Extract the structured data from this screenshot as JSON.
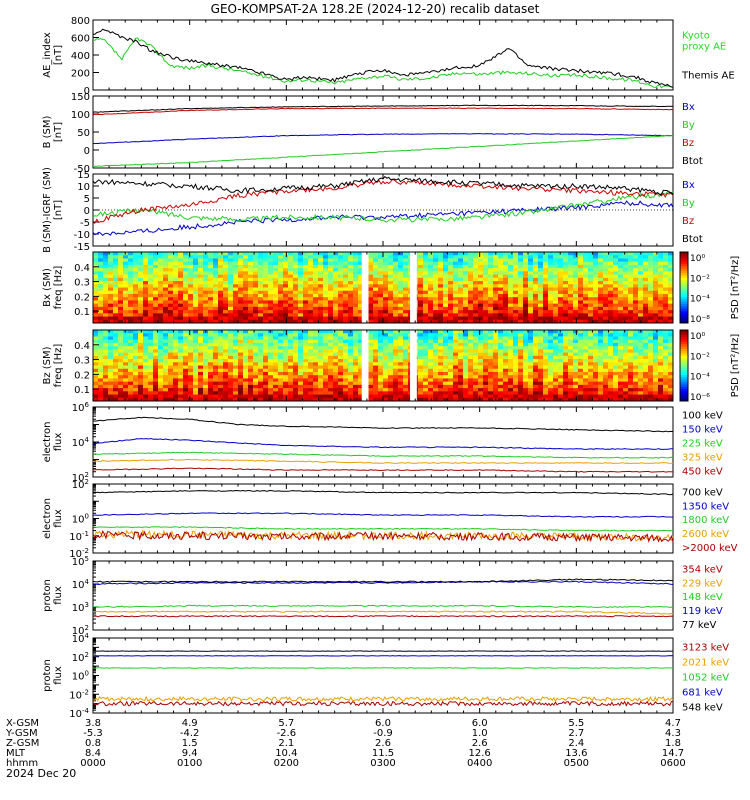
{
  "title": "GEO-KOMPSAT-2A 128.2E (2024-12-20) recalib dataset",
  "date_label": "2024 Dec 20",
  "chart_data": [
    {
      "id": "ae",
      "type": "line",
      "ylabel": "AE_index\n[nT]",
      "ylim": [
        0,
        800
      ],
      "yscale": "linear",
      "yticks": [
        0,
        200,
        400,
        600,
        800
      ],
      "series": [
        {
          "name": "Kyoto\nproxy AE",
          "color": "#22cc22",
          "label_color": "#22dd22",
          "x": [
            0,
            0.1,
            0.2,
            0.3,
            0.45,
            0.6,
            0.8,
            1.0,
            1.2,
            1.5,
            1.8,
            2.0,
            2.2,
            2.5,
            2.8,
            3.0,
            3.2,
            3.5,
            3.8,
            4.0,
            4.2,
            4.5,
            4.8,
            5.0,
            5.3,
            5.6,
            5.8,
            6.0
          ],
          "y": [
            560,
            580,
            470,
            350,
            600,
            500,
            280,
            250,
            280,
            220,
            150,
            100,
            120,
            80,
            140,
            160,
            120,
            140,
            200,
            180,
            200,
            190,
            160,
            170,
            140,
            110,
            50,
            30
          ]
        },
        {
          "name": "Themis AE",
          "color": "#000000",
          "label_color": "#000000",
          "x": [
            0,
            0.1,
            0.2,
            0.3,
            0.45,
            0.6,
            0.8,
            1.0,
            1.2,
            1.5,
            1.8,
            2.0,
            2.2,
            2.5,
            2.8,
            3.0,
            3.2,
            3.5,
            3.8,
            4.0,
            4.2,
            4.3,
            4.5,
            4.8,
            5.0,
            5.3,
            5.6,
            5.8,
            6.0
          ],
          "y": [
            620,
            700,
            650,
            600,
            550,
            450,
            380,
            330,
            300,
            260,
            180,
            120,
            150,
            110,
            200,
            230,
            170,
            200,
            260,
            280,
            400,
            480,
            280,
            240,
            220,
            200,
            150,
            80,
            40
          ]
        }
      ]
    },
    {
      "id": "bsm",
      "type": "line",
      "ylabel": "B (SM)\n[nT]",
      "ylim": [
        -50,
        150
      ],
      "yscale": "linear",
      "yticks": [
        -50,
        0,
        50,
        100,
        150
      ],
      "series": [
        {
          "name": "Bx",
          "color": "#0000cc",
          "label_color": "#0000cc",
          "x": [
            0,
            1,
            2,
            3,
            4,
            5,
            6
          ],
          "y": [
            18,
            30,
            40,
            44,
            45,
            44,
            40
          ]
        },
        {
          "name": "By",
          "color": "#22cc22",
          "label_color": "#22cc22",
          "x": [
            0,
            1,
            2,
            3,
            4,
            5,
            6
          ],
          "y": [
            -45,
            -35,
            -20,
            -5,
            10,
            25,
            40
          ]
        },
        {
          "name": "Bz",
          "color": "#cc0000",
          "label_color": "#cc0000",
          "x": [
            0,
            1,
            2,
            3,
            4,
            5,
            6
          ],
          "y": [
            98,
            110,
            115,
            116,
            116,
            115,
            112
          ]
        },
        {
          "name": "Btot",
          "color": "#000000",
          "label_color": "#000000",
          "x": [
            0,
            1,
            2,
            3,
            4,
            5,
            6
          ],
          "y": [
            105,
            115,
            120,
            122,
            124,
            123,
            121
          ]
        }
      ]
    },
    {
      "id": "digrf",
      "type": "line",
      "ylabel": "B (SM)-IGRF (SM)\n[nT]",
      "ylim": [
        -15,
        15
      ],
      "yscale": "linear",
      "yticks": [
        -15,
        -10,
        -5,
        0,
        5,
        10,
        15
      ],
      "series": [
        {
          "name": "Bx",
          "color": "#0000cc",
          "label_color": "#0000cc",
          "x": [
            0,
            0.5,
            1,
            1.5,
            2,
            2.5,
            3,
            3.5,
            4,
            4.5,
            5,
            5.5,
            6
          ],
          "y": [
            -10,
            -9,
            -7,
            -5,
            -4,
            -3,
            -3,
            -2,
            -1,
            0,
            1,
            3,
            2
          ]
        },
        {
          "name": "By",
          "color": "#22cc22",
          "label_color": "#22cc22",
          "x": [
            0,
            0.5,
            1,
            1.5,
            2,
            2.5,
            3,
            3.5,
            4,
            4.5,
            5,
            5.5,
            6
          ],
          "y": [
            -2,
            0,
            -3,
            -4,
            -3,
            -3,
            -4,
            -4,
            -3,
            -1,
            2,
            5,
            7
          ]
        },
        {
          "name": "Bz",
          "color": "#cc0000",
          "label_color": "#cc0000",
          "x": [
            0,
            0.5,
            1,
            1.5,
            2,
            2.5,
            3,
            3.5,
            4,
            4.5,
            5,
            5.5,
            6
          ],
          "y": [
            -5,
            0,
            2,
            6,
            8,
            9,
            12,
            11,
            10,
            9,
            8,
            7,
            6
          ]
        },
        {
          "name": "Btot",
          "color": "#000000",
          "label_color": "#000000",
          "x": [
            0,
            0.5,
            1,
            1.5,
            2,
            2.5,
            3,
            3.5,
            4,
            4.5,
            5,
            5.5,
            6
          ],
          "y": [
            12,
            11,
            10,
            8,
            9,
            10,
            13,
            12,
            11,
            10,
            10,
            9,
            7
          ]
        }
      ]
    },
    {
      "id": "bx_spec",
      "type": "heatmap",
      "ylabel": "Bx (SM)\nfreq [Hz]",
      "ylim": [
        0.02,
        0.5
      ],
      "yticks": [
        0.1,
        0.2,
        0.3,
        0.4
      ],
      "colorbar_label": "PSD [nT²/Hz]",
      "colorbar_ticks": [
        "10⁻⁸",
        "10⁻⁴",
        "10⁻²",
        "10⁰"
      ],
      "data_gaps_hours": [
        [
          2.78,
          2.85
        ],
        [
          3.28,
          3.35
        ]
      ]
    },
    {
      "id": "bz_spec",
      "type": "heatmap",
      "ylabel": "Bz (SM)\nfreq [Hz]",
      "ylim": [
        0.02,
        0.5
      ],
      "yticks": [
        0.1,
        0.2,
        0.3,
        0.4
      ],
      "colorbar_label": "PSD [nT²/Hz]",
      "colorbar_ticks": [
        "10⁻⁶",
        "10⁻⁴",
        "10⁻²",
        "10⁰"
      ],
      "data_gaps_hours": [
        [
          2.78,
          2.85
        ],
        [
          3.28,
          3.35
        ]
      ]
    },
    {
      "id": "elec_low",
      "type": "line",
      "ylabel": "electron\nflux",
      "ylim_log": [
        2,
        6
      ],
      "yscale": "log",
      "yticks_exp": [
        2,
        4,
        6
      ],
      "series": [
        {
          "name": "100 keV",
          "color": "#000000",
          "label_color": "#000000",
          "x": [
            0,
            0.5,
            1,
            1.5,
            2,
            3,
            4,
            5,
            6
          ],
          "y_log10": [
            5.2,
            5.4,
            5.3,
            5.0,
            4.9,
            4.8,
            4.8,
            4.7,
            4.6
          ]
        },
        {
          "name": "150 keV",
          "color": "#0000cc",
          "label_color": "#0000cc",
          "x": [
            0,
            0.5,
            1,
            2,
            3,
            4,
            5,
            6
          ],
          "y_log10": [
            3.9,
            4.2,
            4.1,
            3.8,
            3.7,
            3.7,
            3.6,
            3.6
          ]
        },
        {
          "name": "225 keV",
          "color": "#22cc22",
          "label_color": "#22cc22",
          "x": [
            0,
            1,
            2,
            3,
            4,
            5,
            6
          ],
          "y_log10": [
            3.3,
            3.4,
            3.3,
            3.2,
            3.2,
            3.1,
            3.1
          ]
        },
        {
          "name": "325 keV",
          "color": "#e8a000",
          "label_color": "#e8a000",
          "x": [
            0,
            1,
            2,
            3,
            4,
            5,
            6
          ],
          "y_log10": [
            2.9,
            3.0,
            2.9,
            2.8,
            2.8,
            2.8,
            2.8
          ]
        },
        {
          "name": "450 keV",
          "color": "#aa0000",
          "label_color": "#aa0000",
          "x": [
            0,
            1,
            2,
            3,
            4,
            5,
            6
          ],
          "y_log10": [
            2.4,
            2.5,
            2.4,
            2.4,
            2.4,
            2.3,
            2.3
          ]
        }
      ]
    },
    {
      "id": "elec_high",
      "type": "line",
      "ylabel": "electron\nflux",
      "ylim_log": [
        -2,
        2
      ],
      "yscale": "log",
      "yticks_exp": [
        -2,
        -1,
        0,
        2
      ],
      "series": [
        {
          "name": "700 keV",
          "color": "#000000",
          "label_color": "#000000",
          "x": [
            0,
            1,
            2,
            3,
            4,
            5,
            6
          ],
          "y_log10": [
            1.5,
            1.6,
            1.6,
            1.5,
            1.5,
            1.5,
            1.4
          ]
        },
        {
          "name": "1350 keV",
          "color": "#0000cc",
          "label_color": "#0000cc",
          "x": [
            0,
            1,
            2,
            3,
            4,
            5,
            6
          ],
          "y_log10": [
            0.2,
            0.3,
            0.3,
            0.2,
            0.2,
            0.1,
            0.1
          ]
        },
        {
          "name": "1800 keV",
          "color": "#22cc22",
          "label_color": "#22cc22",
          "x": [
            0,
            1,
            2,
            3,
            4,
            5,
            6
          ],
          "y_log10": [
            -0.5,
            -0.5,
            -0.6,
            -0.6,
            -0.6,
            -0.7,
            -0.7
          ]
        },
        {
          "name": "2600 keV",
          "color": "#e8a000",
          "label_color": "#e8a000",
          "x": [
            0,
            1,
            2,
            3,
            4,
            5,
            6
          ],
          "y_log10": [
            -0.9,
            -0.95,
            -1.0,
            -1.0,
            -1.0,
            -1.05,
            -1.1
          ]
        },
        {
          "name": ">2000 keV",
          "color": "#aa0000",
          "label_color": "#aa0000",
          "x": [
            0,
            1,
            2,
            3,
            4,
            5,
            6
          ],
          "y_log10": [
            -0.95,
            -1.0,
            -1.05,
            -1.0,
            -1.05,
            -1.1,
            -1.15
          ]
        }
      ]
    },
    {
      "id": "prot_low",
      "type": "line",
      "ylabel": "proton\nflux",
      "ylim_log": [
        2,
        5
      ],
      "yscale": "log",
      "yticks_exp": [
        2,
        3,
        4,
        5
      ],
      "series": [
        {
          "name": "354 keV",
          "color": "#aa0000",
          "label_color": "#aa0000",
          "x": [
            0,
            1,
            2,
            3,
            4,
            5,
            6
          ],
          "y_log10": [
            2.6,
            2.6,
            2.6,
            2.6,
            2.6,
            2.6,
            2.6
          ]
        },
        {
          "name": "229 keV",
          "color": "#e8a000",
          "label_color": "#e8a000",
          "x": [
            0,
            1,
            2,
            3,
            4,
            5,
            6
          ],
          "y_log10": [
            2.8,
            2.8,
            2.8,
            2.8,
            2.8,
            2.8,
            2.7
          ]
        },
        {
          "name": "148 keV",
          "color": "#22cc22",
          "label_color": "#22cc22",
          "x": [
            0,
            1,
            2,
            3,
            4,
            5,
            6
          ],
          "y_log10": [
            3.0,
            3.05,
            3.05,
            3.05,
            3.05,
            3.0,
            3.0
          ]
        },
        {
          "name": "119 keV",
          "color": "#0000cc",
          "label_color": "#0000cc",
          "x": [
            0,
            1,
            2,
            3,
            4,
            5,
            6
          ],
          "y_log10": [
            4.0,
            4.05,
            4.05,
            4.05,
            4.1,
            4.1,
            4.0
          ]
        },
        {
          "name": "77 keV",
          "color": "#000000",
          "label_color": "#000000",
          "x": [
            0,
            1,
            2,
            3,
            4,
            5,
            6
          ],
          "y_log10": [
            4.1,
            4.1,
            4.1,
            4.1,
            4.1,
            4.2,
            4.15
          ]
        }
      ]
    },
    {
      "id": "prot_high",
      "type": "line",
      "ylabel": "proton\nflux",
      "ylim_log": [
        -4,
        4
      ],
      "yscale": "log",
      "yticks_exp": [
        -4,
        -2,
        0,
        2,
        4
      ],
      "series": [
        {
          "name": "3123 keV",
          "color": "#aa0000",
          "label_color": "#aa0000",
          "x": [
            0,
            1,
            2,
            3,
            4,
            5,
            6
          ],
          "y_log10": [
            -3.0,
            -3.0,
            -3.0,
            -3.0,
            -3.0,
            -3.0,
            -3.0
          ]
        },
        {
          "name": "2021 keV",
          "color": "#e8a000",
          "label_color": "#e8a000",
          "x": [
            0,
            1,
            2,
            3,
            4,
            5,
            6
          ],
          "y_log10": [
            -2.5,
            -2.5,
            -2.5,
            -2.5,
            -2.5,
            -2.5,
            -2.5
          ]
        },
        {
          "name": "1052 keV",
          "color": "#22cc22",
          "label_color": "#22cc22",
          "x": [
            0,
            1,
            2,
            3,
            4,
            5,
            6
          ],
          "y_log10": [
            0.8,
            0.8,
            0.8,
            0.8,
            0.8,
            0.8,
            0.8
          ]
        },
        {
          "name": "681 keV",
          "color": "#0000cc",
          "label_color": "#0000cc",
          "x": [
            0,
            1,
            2,
            3,
            4,
            5,
            6
          ],
          "y_log10": [
            2.1,
            2.1,
            2.1,
            2.1,
            2.1,
            2.1,
            2.1
          ]
        },
        {
          "name": "548 keV",
          "color": "#000000",
          "label_color": "#000000",
          "x": [
            0,
            1,
            2,
            3,
            4,
            5,
            6
          ],
          "y_log10": [
            2.6,
            2.6,
            2.6,
            2.6,
            2.6,
            2.6,
            2.6
          ]
        }
      ]
    }
  ],
  "ephemeris": {
    "row_labels": [
      "X-GSM",
      "Y-GSM",
      "Z-GSM",
      "MLT",
      "hhmm"
    ],
    "columns": [
      [
        "3.8",
        "-5.3",
        "0.8",
        "8.4",
        "0000"
      ],
      [
        "4.9",
        "-4.2",
        "1.5",
        "9.4",
        "0100"
      ],
      [
        "5.7",
        "-2.6",
        "2.1",
        "10.4",
        "0200"
      ],
      [
        "6.0",
        "-0.9",
        "2.6",
        "11.5",
        "0300"
      ],
      [
        "6.0",
        "1.0",
        "2.6",
        "12.6",
        "0400"
      ],
      [
        "5.5",
        "2.7",
        "2.4",
        "13.6",
        "0500"
      ],
      [
        "4.7",
        "4.3",
        "1.8",
        "14.7",
        "0600"
      ]
    ]
  }
}
